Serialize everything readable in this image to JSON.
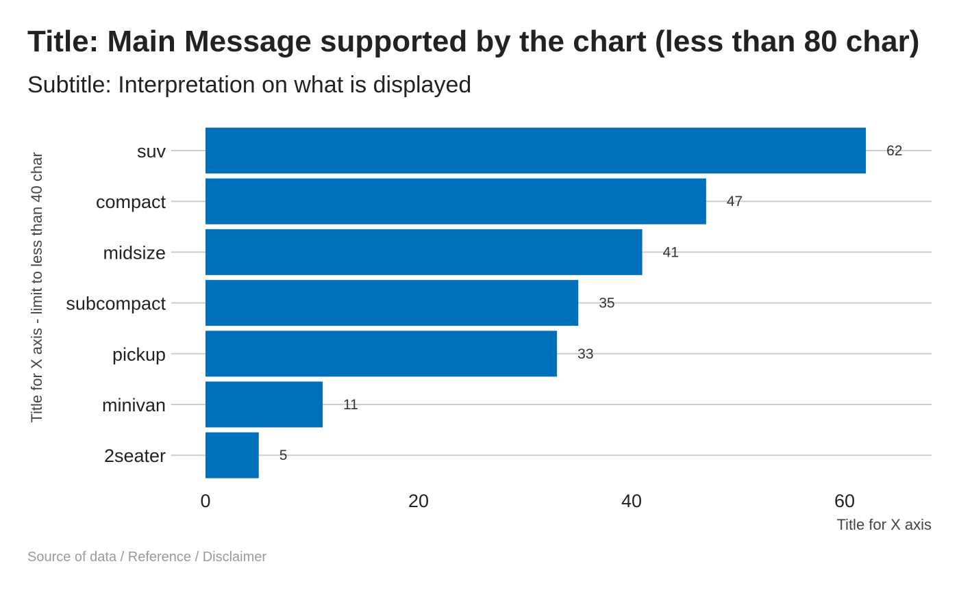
{
  "chart_data": {
    "type": "bar",
    "orientation": "horizontal",
    "title": "Title: Main Message supported by the chart (less than 80 char)",
    "subtitle": "Subtitle: Interpretation on what is displayed",
    "xlabel": "Title for X axis",
    "ylabel": "Title for X axis - limit to less than 40 char",
    "caption": "Source of data / Reference / Disclaimer",
    "categories": [
      "suv",
      "compact",
      "midsize",
      "subcompact",
      "pickup",
      "minivan",
      "2seater"
    ],
    "values": [
      62,
      47,
      41,
      35,
      33,
      11,
      5
    ],
    "value_labels": [
      "62",
      "47",
      "41",
      "35",
      "33",
      "11",
      "5"
    ],
    "x_ticks": [
      0,
      20,
      40,
      60
    ],
    "x_tick_labels": [
      "0",
      "20",
      "40",
      "60"
    ],
    "xlim": [
      0,
      68
    ],
    "grid": true,
    "bar_color": "#0070BB",
    "gridline_color": "#cccccc"
  }
}
